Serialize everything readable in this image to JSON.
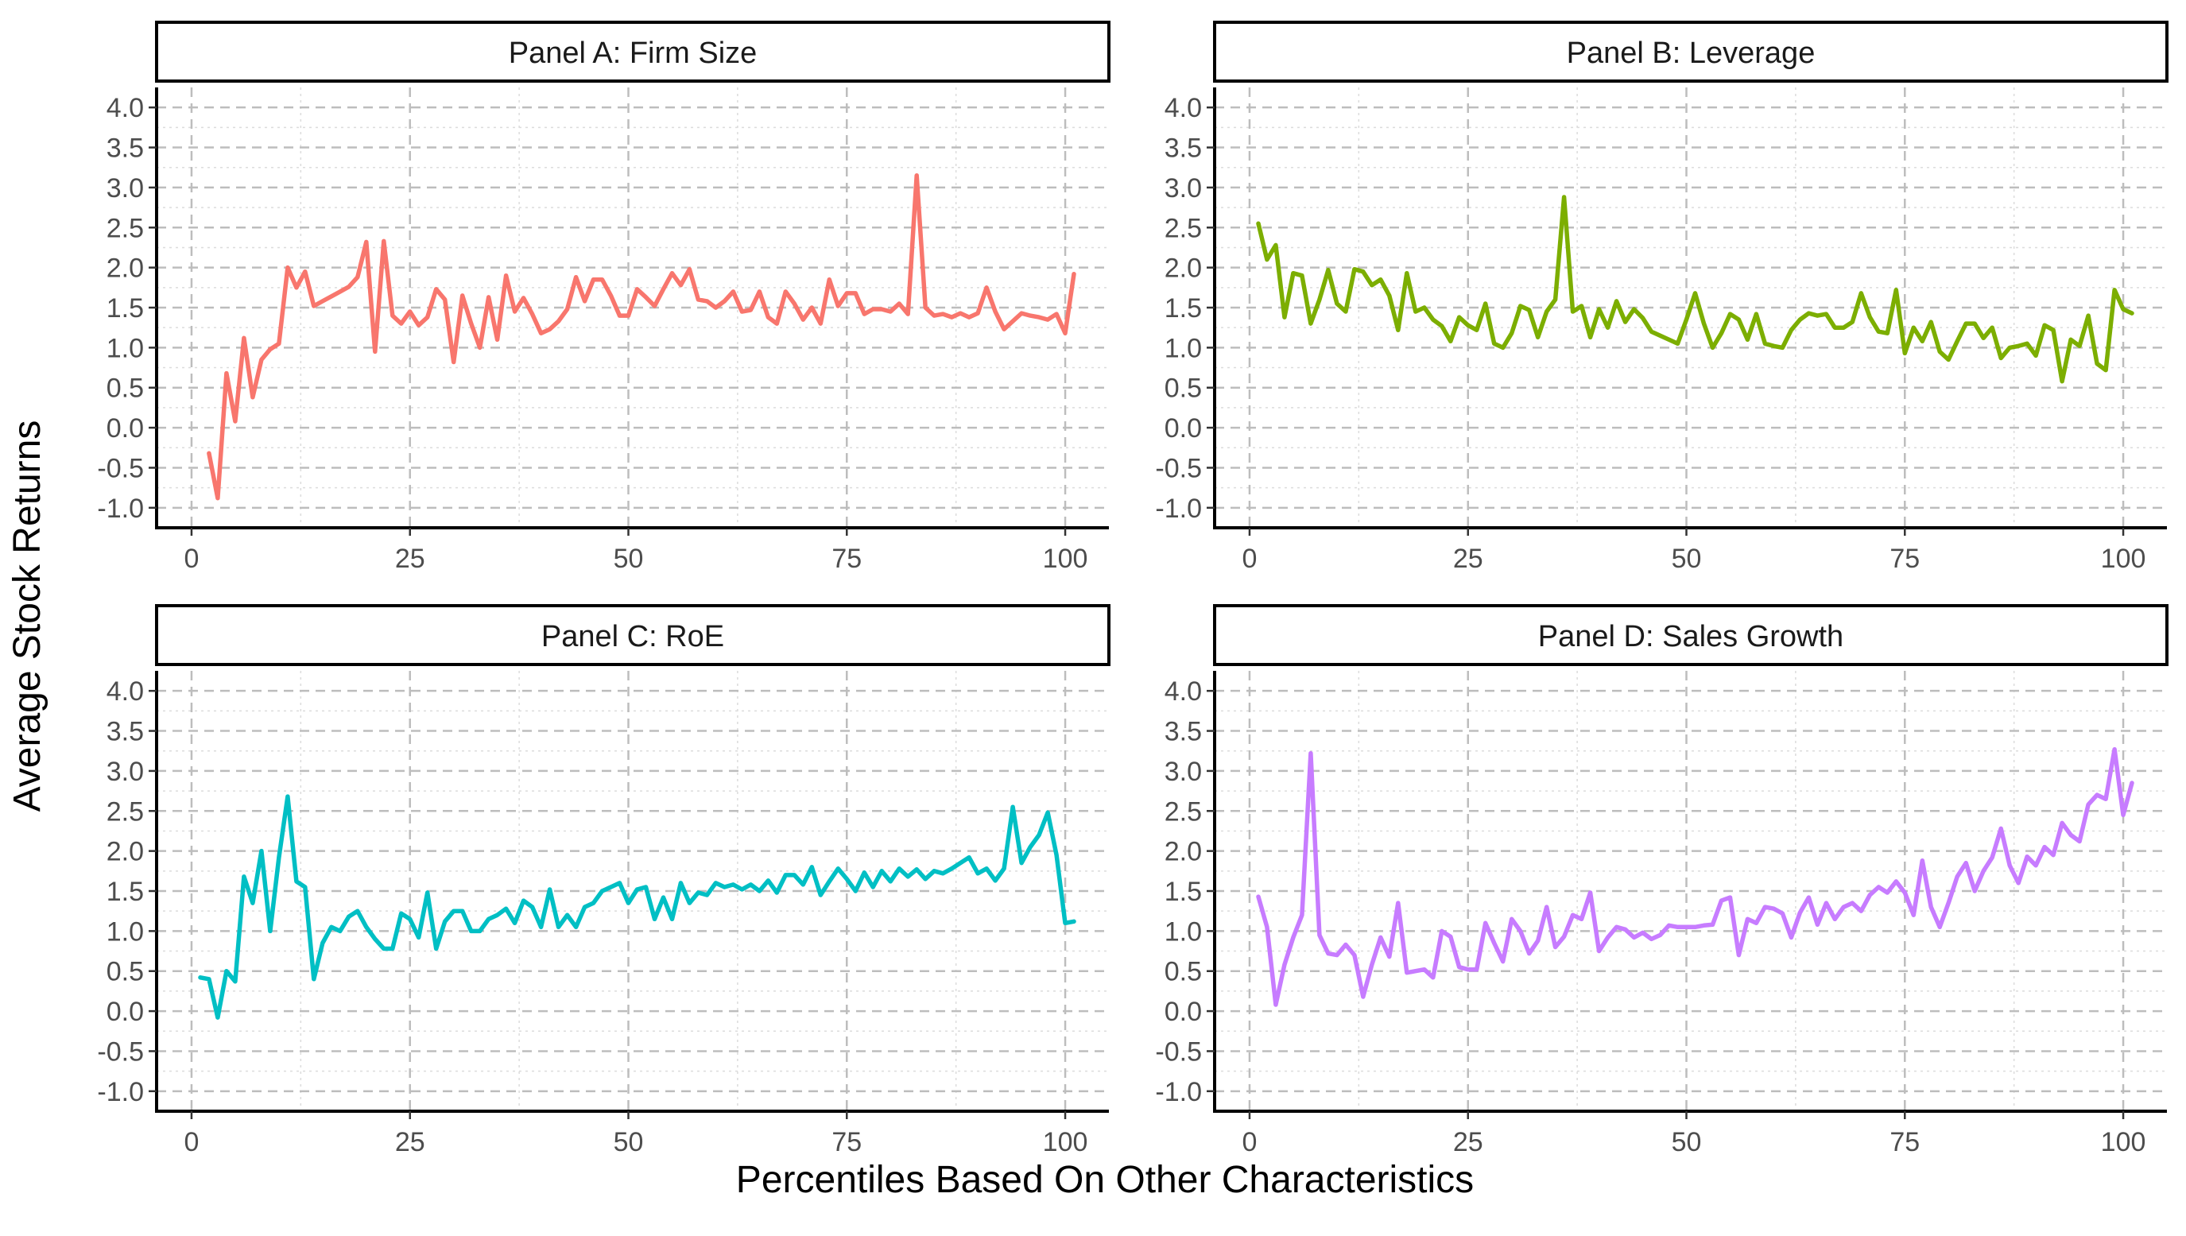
{
  "figure": {
    "xlabel": "Percentiles Based On Other Characteristics",
    "ylabel": "Average Stock Returns"
  },
  "chart_data": {
    "type": "line",
    "xlim": [
      -4,
      105
    ],
    "ylim": [
      -1.25,
      4.25
    ],
    "x_ticks": [
      0,
      25,
      50,
      75,
      100
    ],
    "y_ticks": [
      -1.0,
      -0.5,
      0.0,
      0.5,
      1.0,
      1.5,
      2.0,
      2.5,
      3.0,
      3.5,
      4.0
    ],
    "y_tick_labels": [
      "-1.0",
      "-0.5",
      "0.0",
      "0.5",
      "1.0",
      "1.5",
      "2.0",
      "2.5",
      "3.0",
      "3.5",
      "4.0"
    ],
    "x_tick_labels": [
      "0",
      "25",
      "50",
      "75",
      "100"
    ],
    "grid": true,
    "panels": [
      {
        "title": "Panel A: Firm Size",
        "color": "#F8766D",
        "x_start": 2,
        "y": [
          -0.32,
          -0.88,
          0.68,
          0.08,
          1.12,
          0.38,
          0.85,
          0.98,
          1.05,
          2.0,
          1.75,
          1.95,
          1.52,
          1.58,
          1.64,
          1.7,
          1.76,
          1.88,
          2.32,
          0.95,
          2.33,
          1.4,
          1.3,
          1.45,
          1.28,
          1.38,
          1.73,
          1.6,
          0.82,
          1.65,
          1.3,
          1.0,
          1.63,
          1.1,
          1.9,
          1.45,
          1.62,
          1.42,
          1.18,
          1.23,
          1.33,
          1.48,
          1.88,
          1.58,
          1.85,
          1.85,
          1.65,
          1.4,
          1.4,
          1.73,
          1.63,
          1.52,
          1.73,
          1.93,
          1.78,
          1.98,
          1.6,
          1.58,
          1.5,
          1.58,
          1.7,
          1.45,
          1.47,
          1.7,
          1.38,
          1.3,
          1.7,
          1.55,
          1.35,
          1.5,
          1.3,
          1.85,
          1.52,
          1.68,
          1.68,
          1.42,
          1.48,
          1.48,
          1.45,
          1.55,
          1.42,
          3.15,
          1.5,
          1.4,
          1.42,
          1.38,
          1.43,
          1.38,
          1.43,
          1.75,
          1.45,
          1.23,
          1.33,
          1.43,
          1.4,
          1.38,
          1.35,
          1.42,
          1.18,
          1.92
        ]
      },
      {
        "title": "Panel B: Leverage",
        "color": "#7CAE00",
        "x_start": 1,
        "y": [
          2.55,
          2.1,
          2.28,
          1.38,
          1.93,
          1.9,
          1.3,
          1.6,
          1.97,
          1.55,
          1.45,
          1.98,
          1.95,
          1.78,
          1.85,
          1.65,
          1.22,
          1.93,
          1.45,
          1.5,
          1.35,
          1.27,
          1.08,
          1.38,
          1.28,
          1.22,
          1.55,
          1.05,
          1.0,
          1.18,
          1.52,
          1.47,
          1.13,
          1.45,
          1.6,
          2.88,
          1.45,
          1.52,
          1.13,
          1.48,
          1.25,
          1.58,
          1.32,
          1.48,
          1.37,
          1.2,
          1.15,
          1.1,
          1.05,
          1.35,
          1.68,
          1.3,
          1.0,
          1.18,
          1.42,
          1.35,
          1.1,
          1.42,
          1.05,
          1.02,
          1.0,
          1.22,
          1.35,
          1.43,
          1.4,
          1.42,
          1.25,
          1.25,
          1.32,
          1.68,
          1.38,
          1.2,
          1.18,
          1.72,
          0.93,
          1.25,
          1.08,
          1.32,
          0.95,
          0.85,
          1.08,
          1.3,
          1.3,
          1.12,
          1.25,
          0.87,
          1.0,
          1.02,
          1.05,
          0.9,
          1.28,
          1.22,
          0.58,
          1.1,
          1.02,
          1.4,
          0.8,
          0.72,
          1.72,
          1.48,
          1.43
        ]
      },
      {
        "title": "Panel C: RoE",
        "color": "#00BFC4",
        "x_start": 1,
        "y": [
          0.42,
          0.4,
          -0.08,
          0.5,
          0.37,
          1.68,
          1.35,
          2.0,
          1.0,
          1.92,
          2.68,
          1.62,
          1.55,
          0.4,
          0.85,
          1.05,
          1.0,
          1.18,
          1.25,
          1.05,
          0.9,
          0.78,
          0.78,
          1.22,
          1.15,
          0.92,
          1.48,
          0.78,
          1.12,
          1.25,
          1.25,
          1.0,
          1.0,
          1.15,
          1.2,
          1.28,
          1.1,
          1.38,
          1.3,
          1.05,
          1.52,
          1.05,
          1.2,
          1.05,
          1.3,
          1.35,
          1.5,
          1.55,
          1.6,
          1.35,
          1.52,
          1.55,
          1.15,
          1.42,
          1.15,
          1.6,
          1.35,
          1.48,
          1.45,
          1.6,
          1.55,
          1.58,
          1.52,
          1.58,
          1.5,
          1.63,
          1.48,
          1.7,
          1.7,
          1.58,
          1.8,
          1.45,
          1.62,
          1.78,
          1.65,
          1.5,
          1.73,
          1.55,
          1.75,
          1.62,
          1.78,
          1.68,
          1.77,
          1.65,
          1.75,
          1.72,
          1.78,
          1.85,
          1.92,
          1.72,
          1.78,
          1.63,
          1.78,
          2.55,
          1.85,
          2.05,
          2.2,
          2.48,
          1.95,
          1.1,
          1.12
        ]
      },
      {
        "title": "Panel D: Sales Growth",
        "color": "#C77CFF",
        "x_start": 1,
        "y": [
          1.43,
          1.05,
          0.08,
          0.58,
          0.92,
          1.2,
          3.22,
          0.95,
          0.72,
          0.7,
          0.83,
          0.7,
          0.18,
          0.58,
          0.92,
          0.68,
          1.35,
          0.48,
          0.5,
          0.52,
          0.42,
          1.0,
          0.93,
          0.55,
          0.52,
          0.52,
          1.1,
          0.85,
          0.62,
          1.15,
          1.0,
          0.72,
          0.88,
          1.3,
          0.8,
          0.93,
          1.2,
          1.15,
          1.48,
          0.75,
          0.92,
          1.05,
          1.02,
          0.92,
          0.98,
          0.9,
          0.95,
          1.07,
          1.05,
          1.05,
          1.05,
          1.07,
          1.08,
          1.38,
          1.42,
          0.7,
          1.15,
          1.1,
          1.3,
          1.28,
          1.22,
          0.92,
          1.23,
          1.42,
          1.08,
          1.35,
          1.15,
          1.3,
          1.35,
          1.25,
          1.45,
          1.55,
          1.48,
          1.62,
          1.48,
          1.2,
          1.88,
          1.3,
          1.05,
          1.35,
          1.68,
          1.85,
          1.5,
          1.75,
          1.92,
          2.28,
          1.82,
          1.6,
          1.93,
          1.82,
          2.05,
          1.95,
          2.35,
          2.2,
          2.12,
          2.58,
          2.7,
          2.65,
          3.27,
          2.45,
          2.85
        ]
      }
    ]
  }
}
